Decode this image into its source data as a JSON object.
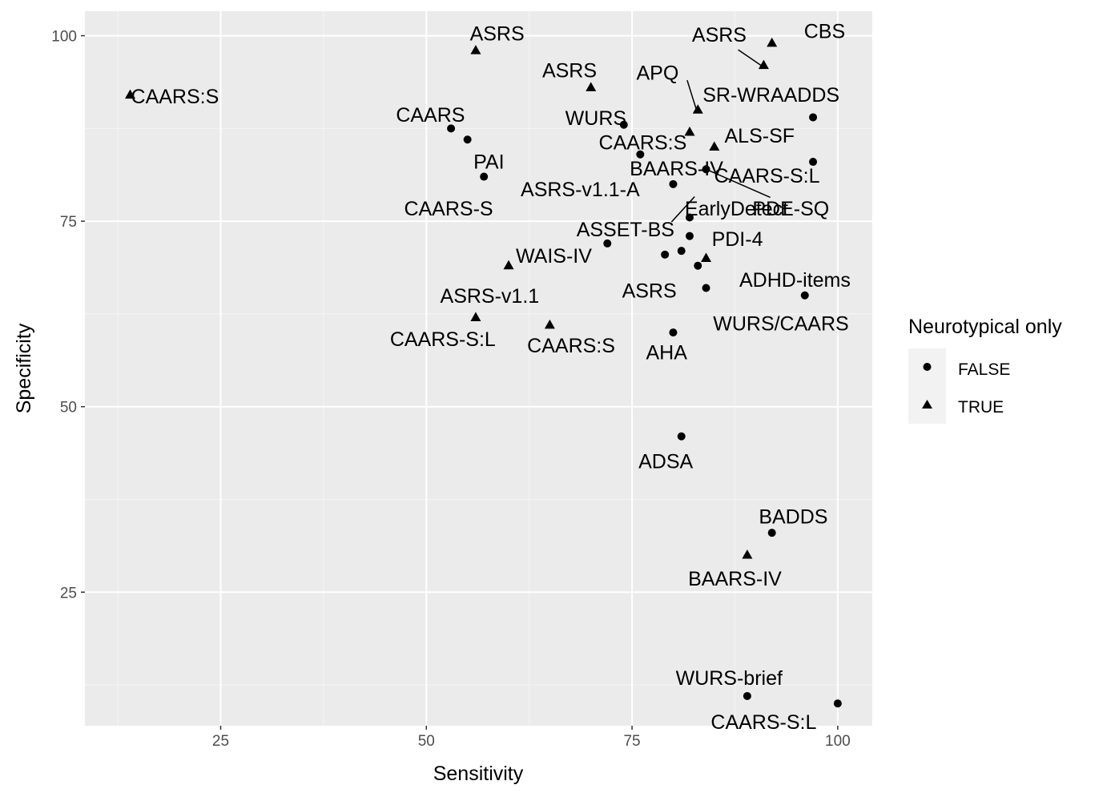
{
  "chart_data": {
    "type": "scatter",
    "xlabel": "Sensitivity",
    "ylabel": "Specificity",
    "xlim": [
      8.5,
      104.2
    ],
    "ylim": [
      7.0,
      103.3
    ],
    "xticks": [
      25,
      50,
      75,
      100
    ],
    "yticks": [
      25,
      50,
      75,
      100
    ],
    "grid": true,
    "legend": {
      "title": "Neurotypical only",
      "placement": "right",
      "entries": [
        {
          "label": "FALSE",
          "shape": "circle"
        },
        {
          "label": "TRUE",
          "shape": "triangle"
        }
      ]
    },
    "colors": {
      "panel": "#ebebeb",
      "grid_major": "#ffffff",
      "grid_minor": "#f5f5f5",
      "point": "#000000",
      "tick_text": "#4d4d4d"
    },
    "points": [
      {
        "x": 14,
        "y": 92,
        "neurotypical_only": true,
        "label": "CAARS:S"
      },
      {
        "x": 56,
        "y": 98,
        "neurotypical_only": true,
        "label": "ASRS"
      },
      {
        "x": 70,
        "y": 93,
        "neurotypical_only": true,
        "label": "ASRS"
      },
      {
        "x": 92,
        "y": 99,
        "neurotypical_only": true,
        "label": "CBS"
      },
      {
        "x": 91,
        "y": 96,
        "neurotypical_only": true,
        "label": "ASRS"
      },
      {
        "x": 83,
        "y": 90,
        "neurotypical_only": true,
        "label": "APQ"
      },
      {
        "x": 97,
        "y": 89,
        "neurotypical_only": false,
        "label": "SR-WRAADDS"
      },
      {
        "x": 53,
        "y": 87.5,
        "neurotypical_only": false,
        "label": "CAARS"
      },
      {
        "x": 74,
        "y": 88,
        "neurotypical_only": false,
        "label": "WURS"
      },
      {
        "x": 82,
        "y": 87,
        "neurotypical_only": true,
        "label": "CAARS:S"
      },
      {
        "x": 85,
        "y": 85,
        "neurotypical_only": true,
        "label": "ALS-SF"
      },
      {
        "x": 55,
        "y": 86,
        "neurotypical_only": false,
        "label": "CAARS-S"
      },
      {
        "x": 57,
        "y": 81,
        "neurotypical_only": false,
        "label": "PAI"
      },
      {
        "x": 76,
        "y": 84,
        "neurotypical_only": false,
        "label": "ASRS-v1.1-A"
      },
      {
        "x": 84,
        "y": 82,
        "neurotypical_only": false,
        "label": "BAARS-IV"
      },
      {
        "x": 97,
        "y": 83,
        "neurotypical_only": false,
        "label": "CAARS-S:L"
      },
      {
        "x": 80,
        "y": 80,
        "neurotypical_only": false,
        "label": "ASSET-BS"
      },
      {
        "x": 82,
        "y": 75.5,
        "neurotypical_only": false,
        "label": "EarlyDetect"
      },
      {
        "x": 82,
        "y": 73,
        "neurotypical_only": false,
        "label": "PDI-4"
      },
      {
        "x": 72,
        "y": 72,
        "neurotypical_only": false,
        "label": "WAIS-IV"
      },
      {
        "x": 81,
        "y": 71,
        "neurotypical_only": false,
        "label": "ASRS"
      },
      {
        "x": 79,
        "y": 70.5,
        "neurotypical_only": false,
        "label": "ASRS"
      },
      {
        "x": 84,
        "y": 70,
        "neurotypical_only": true,
        "label": "PDI-4"
      },
      {
        "x": 83,
        "y": 69,
        "neurotypical_only": false,
        "label": "ADHD-items"
      },
      {
        "x": 84,
        "y": 66,
        "neurotypical_only": false,
        "label": "ADHD-items"
      },
      {
        "x": 96,
        "y": 65,
        "neurotypical_only": false,
        "label": "WURS/CAARS"
      },
      {
        "x": 60,
        "y": 69,
        "neurotypical_only": true,
        "label": "WAIS-IV"
      },
      {
        "x": 56,
        "y": 62,
        "neurotypical_only": true,
        "label": "ASRS-v1.1"
      },
      {
        "x": 65,
        "y": 61,
        "neurotypical_only": true,
        "label": "CAARS:S"
      },
      {
        "x": 80,
        "y": 60,
        "neurotypical_only": false,
        "label": "AHA"
      },
      {
        "x": 81,
        "y": 46,
        "neurotypical_only": false,
        "label": "ADSA"
      },
      {
        "x": 92,
        "y": 33,
        "neurotypical_only": false,
        "label": "BADDS"
      },
      {
        "x": 89,
        "y": 30,
        "neurotypical_only": true,
        "label": "BAARS-IV"
      },
      {
        "x": 89,
        "y": 11,
        "neurotypical_only": false,
        "label": "WURS-brief"
      },
      {
        "x": 100,
        "y": 10,
        "neurotypical_only": false,
        "label": "CAARS-S:L"
      }
    ],
    "text_labels": [
      {
        "text": "CAARS:S",
        "x": 14.1,
        "y": 91.6,
        "anchor": "start"
      },
      {
        "text": "ASRS",
        "x": 58.6,
        "y": 100.1,
        "anchor": "middle"
      },
      {
        "text": "ASRS",
        "x": 67.4,
        "y": 95.1,
        "anchor": "middle"
      },
      {
        "text": "CBS",
        "x": 98.4,
        "y": 100.4,
        "anchor": "middle"
      },
      {
        "text": "ASRS",
        "x": 85.6,
        "y": 99.9,
        "anchor": "middle"
      },
      {
        "text": "APQ",
        "x": 78.1,
        "y": 94.8,
        "anchor": "middle"
      },
      {
        "text": "SR-WRAADDS",
        "x": 91.9,
        "y": 91.8,
        "anchor": "middle"
      },
      {
        "text": "CAARS",
        "x": 50.5,
        "y": 89.1,
        "anchor": "middle"
      },
      {
        "text": "WURS",
        "x": 70.6,
        "y": 88.7,
        "anchor": "middle"
      },
      {
        "text": "CAARS:S",
        "x": 76.3,
        "y": 85.4,
        "anchor": "middle"
      },
      {
        "text": "ALS-SF",
        "x": 90.5,
        "y": 86.3,
        "anchor": "middle"
      },
      {
        "text": "PAI",
        "x": 57.6,
        "y": 82.8,
        "anchor": "middle"
      },
      {
        "text": "BAARS-IV",
        "x": 80.4,
        "y": 81.9,
        "anchor": "middle"
      },
      {
        "text": "CAARS-S:L",
        "x": 91.4,
        "y": 80.9,
        "anchor": "middle"
      },
      {
        "text": "ASRS-v1.1-A",
        "x": 68.7,
        "y": 79.1,
        "anchor": "middle"
      },
      {
        "text": "CAARS-S",
        "x": 52.7,
        "y": 76.5,
        "anchor": "middle"
      },
      {
        "text": "EarlyDetect",
        "x": 87.7,
        "y": 76.5,
        "anchor": "middle"
      },
      {
        "text": "PDE-SQ",
        "x": 94.3,
        "y": 76.5,
        "anchor": "middle"
      },
      {
        "text": "ASSET-BS",
        "x": 74.2,
        "y": 73.7,
        "anchor": "middle"
      },
      {
        "text": "PDI-4",
        "x": 87.8,
        "y": 72.4,
        "anchor": "middle"
      },
      {
        "text": "WAIS-IV",
        "x": 65.5,
        "y": 70.1,
        "anchor": "middle"
      },
      {
        "text": "ADHD-items",
        "x": 94.8,
        "y": 66.9,
        "anchor": "middle"
      },
      {
        "text": "ASRS",
        "x": 77.1,
        "y": 65.4,
        "anchor": "middle"
      },
      {
        "text": "ASRS-v1.1",
        "x": 57.7,
        "y": 64.7,
        "anchor": "middle"
      },
      {
        "text": "WURS/CAARS",
        "x": 93.1,
        "y": 61.0,
        "anchor": "middle"
      },
      {
        "text": "CAARS-S:L",
        "x": 52.0,
        "y": 58.9,
        "anchor": "middle"
      },
      {
        "text": "CAARS:S",
        "x": 67.6,
        "y": 58.0,
        "anchor": "middle"
      },
      {
        "text": "AHA",
        "x": 79.2,
        "y": 57.1,
        "anchor": "middle"
      },
      {
        "text": "ADSA",
        "x": 79.1,
        "y": 42.4,
        "anchor": "middle"
      },
      {
        "text": "BADDS",
        "x": 94.6,
        "y": 35.0,
        "anchor": "middle"
      },
      {
        "text": "BAARS-IV",
        "x": 87.5,
        "y": 26.6,
        "anchor": "middle"
      },
      {
        "text": "WURS-brief",
        "x": 86.8,
        "y": 13.2,
        "anchor": "middle"
      },
      {
        "text": "CAARS-S:L",
        "x": 91.0,
        "y": 7.3,
        "anchor": "middle"
      }
    ],
    "leader_lines": [
      {
        "x1": 87.9,
        "y1": 98.1,
        "x2": 90.8,
        "y2": 95.9
      },
      {
        "x1": 81.7,
        "y1": 94.0,
        "x2": 82.8,
        "y2": 90.1
      },
      {
        "x1": 82.6,
        "y1": 78.3,
        "x2": 79.8,
        "y2": 74.9
      },
      {
        "x1": 84.2,
        "y1": 81.9,
        "x2": 91.8,
        "y2": 78.2
      }
    ]
  }
}
